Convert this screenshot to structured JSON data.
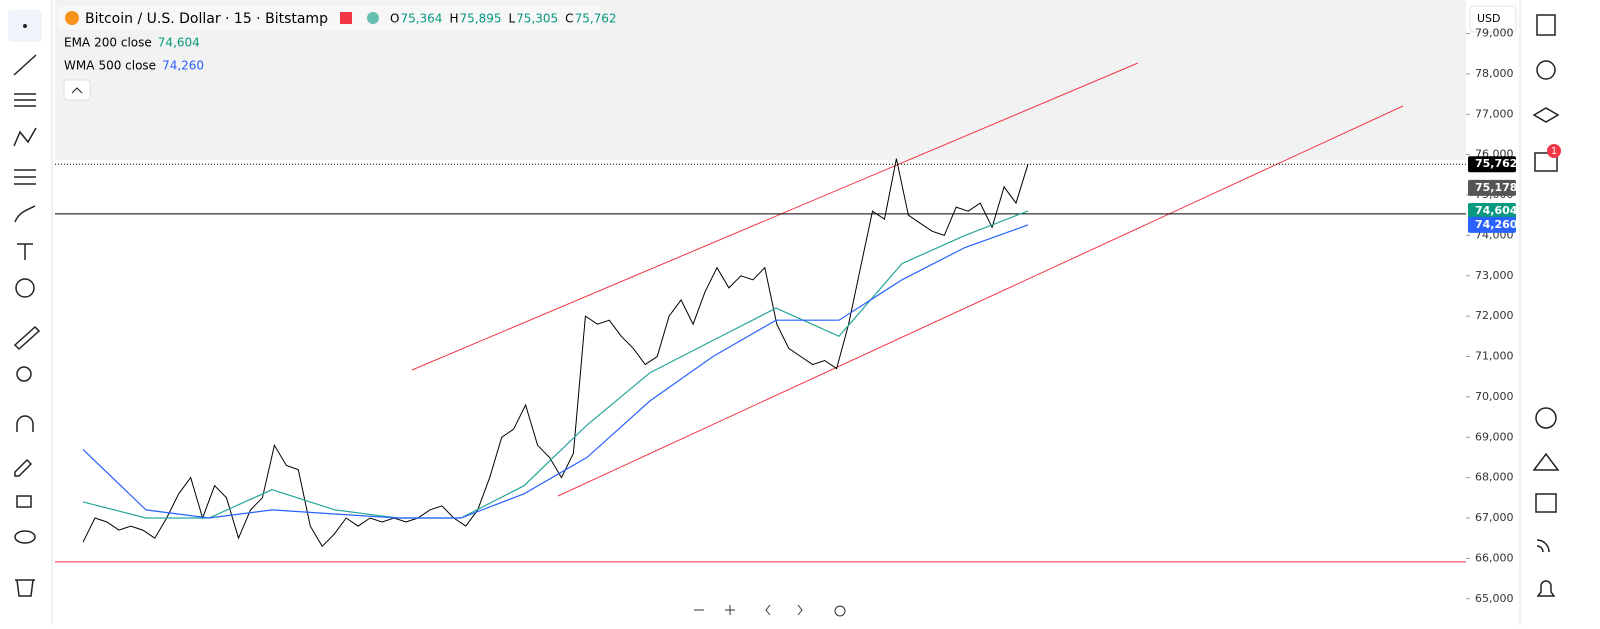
{
  "header": {
    "symbol": "Bitcoin / U.S. Dollar · 15 · Bitstamp",
    "ohlc": [
      {
        "key": "O",
        "value": "75,364"
      },
      {
        "key": "H",
        "value": "75,895"
      },
      {
        "key": "L",
        "value": "75,305"
      },
      {
        "key": "C",
        "value": "75,762"
      }
    ],
    "indicators": [
      {
        "name": "EMA",
        "params": "200 close",
        "value": "74,604"
      },
      {
        "name": "WMA",
        "params": "500 close",
        "value": "74,260"
      }
    ]
  },
  "currency": "USD",
  "alerts_badge": "1",
  "chart_data": {
    "type": "line",
    "ylim": [
      64350,
      79830
    ],
    "yticks": [
      {
        "value": 65000,
        "label": "65,000"
      },
      {
        "value": 66000,
        "label": "66,000"
      },
      {
        "value": 67000,
        "label": "67,000"
      },
      {
        "value": 68000,
        "label": "68,000"
      },
      {
        "value": 69000,
        "label": "69,000"
      },
      {
        "value": 70000,
        "label": "70,000"
      },
      {
        "value": 71000,
        "label": "71,000"
      },
      {
        "value": 72000,
        "label": "72,000"
      },
      {
        "value": 73000,
        "label": "73,000"
      },
      {
        "value": 74000,
        "label": "74,000"
      },
      {
        "value": 75000,
        "label": "75,000"
      },
      {
        "value": 76000,
        "label": "76,000"
      },
      {
        "value": 77000,
        "label": "77,000"
      },
      {
        "value": 78000,
        "label": "78,000"
      },
      {
        "value": 79000,
        "label": "79,000"
      }
    ],
    "series": [
      {
        "name": "price",
        "color": "#000000",
        "values": [
          66400,
          67000,
          66900,
          66700,
          66800,
          66700,
          66500,
          67000,
          67600,
          68000,
          67000,
          67800,
          67500,
          66500,
          67200,
          67500,
          68800,
          68300,
          68200,
          66800,
          66300,
          66600,
          67000,
          66800,
          67000,
          66900,
          67000,
          66900,
          67000,
          67200,
          67300,
          67000,
          66800,
          67200,
          68000,
          69000,
          69200,
          69800,
          68800,
          68500,
          68000,
          68600,
          72000,
          71800,
          71900,
          71500,
          71200,
          70800,
          71000,
          72000,
          72400,
          71800,
          72600,
          73200,
          72700,
          73000,
          72900,
          73200,
          71800,
          71200,
          71000,
          70800,
          70900,
          70700,
          71800,
          73200,
          74600,
          74400,
          75900,
          74500,
          74300,
          74100,
          74000,
          74700,
          74600,
          74800,
          74200,
          75200,
          74800,
          75762
        ]
      },
      {
        "name": "EMA",
        "color": "#26a69a",
        "values": [
          67400,
          67000,
          67000,
          67700,
          67200,
          67000,
          67000,
          67800,
          69300,
          70600,
          71400,
          72200,
          71500,
          73300,
          74000,
          74604
        ]
      },
      {
        "name": "WMA",
        "color": "#2962ff",
        "values": [
          68700,
          67200,
          67000,
          67200,
          67100,
          67000,
          67000,
          67600,
          68500,
          69900,
          71000,
          71900,
          71900,
          72900,
          73700,
          74260
        ]
      }
    ],
    "levels": [
      {
        "value": 74533,
        "color": "#000000"
      },
      {
        "value": 65914,
        "color": "#f23645"
      }
    ],
    "price_labels": [
      {
        "value": 75762,
        "label": "75,762",
        "color": "#000000"
      },
      {
        "value": 75178,
        "label": "75,178",
        "color": "#555555"
      },
      {
        "value": 74604,
        "label": "74,604",
        "color": "#089981"
      },
      {
        "value": 74260,
        "label": "74,260",
        "color": "#2962ff"
      }
    ]
  }
}
